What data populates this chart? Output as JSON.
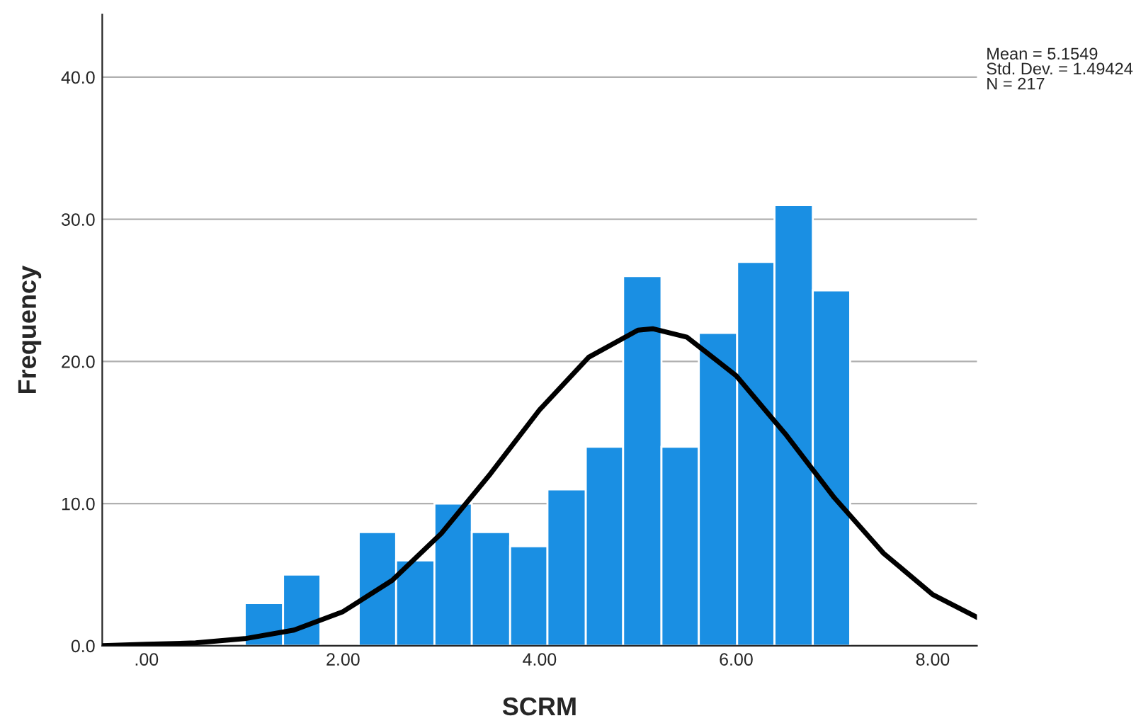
{
  "chart_data": {
    "type": "histogram",
    "xlabel": "SCRM",
    "ylabel": "Frequency",
    "annotations": [
      "Mean = 5.1549\nStd. Dev. = 1.49424\nN = 217"
    ],
    "series": [
      {
        "color": "#1a8fe3",
        "bins": [
          1.0,
          1.39,
          1.77,
          2.16,
          2.54,
          2.93,
          3.31,
          3.7,
          4.08,
          4.47,
          4.85,
          5.24,
          5.62,
          6.01,
          6.39,
          6.78,
          7.16
        ],
        "values": [
          3,
          5,
          0,
          8,
          6,
          10,
          8,
          7,
          11,
          14,
          26,
          14,
          22,
          27,
          31,
          25
        ]
      },
      {
        "type": "line",
        "color": "#000000",
        "x": [
          -0.45,
          0,
          0.5,
          1,
          1.5,
          2,
          2.5,
          3,
          3.5,
          4,
          4.5,
          5,
          5.15,
          5.5,
          6,
          6.5,
          7,
          7.5,
          8,
          8.45
        ],
        "values": [
          0.0,
          0.1,
          0.2,
          0.5,
          1.1,
          2.4,
          4.6,
          7.9,
          12.1,
          16.6,
          20.3,
          22.2,
          22.3,
          21.7,
          19.0,
          14.9,
          10.4,
          6.5,
          3.6,
          2.0
        ]
      }
    ],
    "xlim": [
      -0.45,
      8.45
    ],
    "ylim": [
      0,
      44.4
    ],
    "xticks": [
      {
        "value": 0,
        "label": ".00"
      },
      {
        "value": 2,
        "label": "2.00"
      },
      {
        "value": 4,
        "label": "4.00"
      },
      {
        "value": 6,
        "label": "6.00"
      },
      {
        "value": 8,
        "label": "8.00"
      }
    ],
    "yticks": [
      {
        "value": 0,
        "label": "0.0"
      },
      {
        "value": 10,
        "label": "10.0"
      },
      {
        "value": 20,
        "label": "20.0"
      },
      {
        "value": 30,
        "label": "30.0"
      },
      {
        "value": 40,
        "label": "40.0"
      }
    ],
    "grid": "y",
    "legend": false
  }
}
